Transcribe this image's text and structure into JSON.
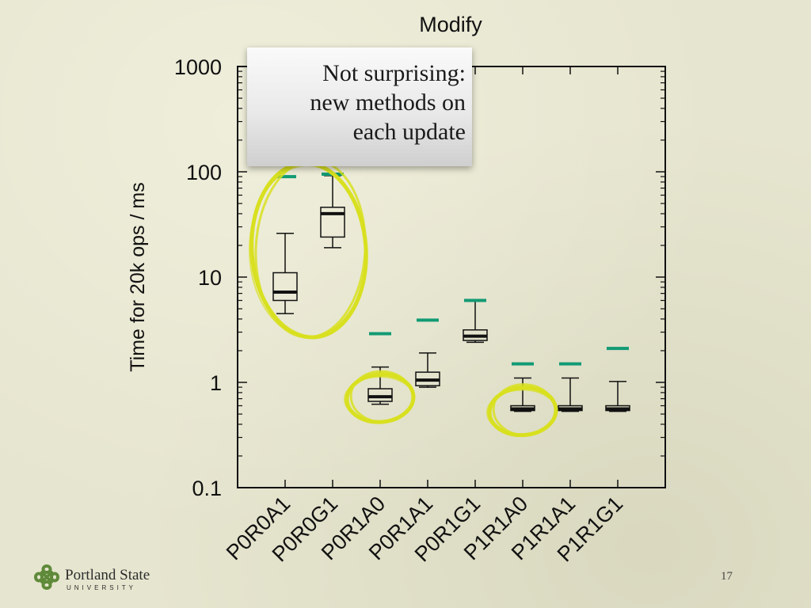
{
  "chart_data": {
    "type": "boxplot",
    "title": "Modify",
    "ylabel": "Time for 20k ops / ms",
    "xlabel": "",
    "yscale": "log",
    "ylim": [
      0.1,
      1000
    ],
    "y_ticks": [
      "0.1",
      "1",
      "10",
      "100",
      "1000"
    ],
    "categories": [
      "P0R0A1",
      "P0R0G1",
      "P0R1A0",
      "P0R1A1",
      "P0R1G1",
      "P1R1A0",
      "P1R1A1",
      "P1R1G1"
    ],
    "boxes": [
      {
        "whisker_low": 4.5,
        "q1": 6.0,
        "median": 7.2,
        "q3": 11.0,
        "whisker_high": 26.0
      },
      {
        "whisker_low": 19.0,
        "q1": 24.0,
        "median": 40.0,
        "q3": 46.0,
        "whisker_high": 92.0
      },
      {
        "whisker_low": 0.62,
        "q1": 0.66,
        "median": 0.73,
        "q3": 0.87,
        "whisker_high": 1.4
      },
      {
        "whisker_low": 0.9,
        "q1": 0.93,
        "median": 1.05,
        "q3": 1.25,
        "whisker_high": 1.9
      },
      {
        "whisker_low": 2.4,
        "q1": 2.5,
        "median": 2.75,
        "q3": 3.15,
        "whisker_high": 6.0
      },
      {
        "whisker_low": 0.53,
        "q1": 0.54,
        "median": 0.56,
        "q3": 0.6,
        "whisker_high": 1.1
      },
      {
        "whisker_low": 0.53,
        "q1": 0.54,
        "median": 0.56,
        "q3": 0.6,
        "whisker_high": 1.1
      },
      {
        "whisker_low": 0.53,
        "q1": 0.54,
        "median": 0.56,
        "q3": 0.6,
        "whisker_high": 1.02
      }
    ],
    "reference_marks": [
      90,
      95,
      2.9,
      3.9,
      6.0,
      1.5,
      1.5,
      2.1
    ],
    "reference_color": "#129a74",
    "highlight_color": "#d8e020",
    "highlighted_groups": [
      [
        0,
        1
      ],
      [
        2
      ],
      [
        5
      ]
    ]
  },
  "annotation": {
    "lines": [
      "Not surprising:",
      "new methods on",
      "each update"
    ]
  },
  "footer": {
    "logo_name": "Portland State",
    "logo_sub": "UNIVERSITY",
    "page_number": "17"
  },
  "colors": {
    "background": "#e6e5cf",
    "logo_green": "#5f8a3a"
  }
}
